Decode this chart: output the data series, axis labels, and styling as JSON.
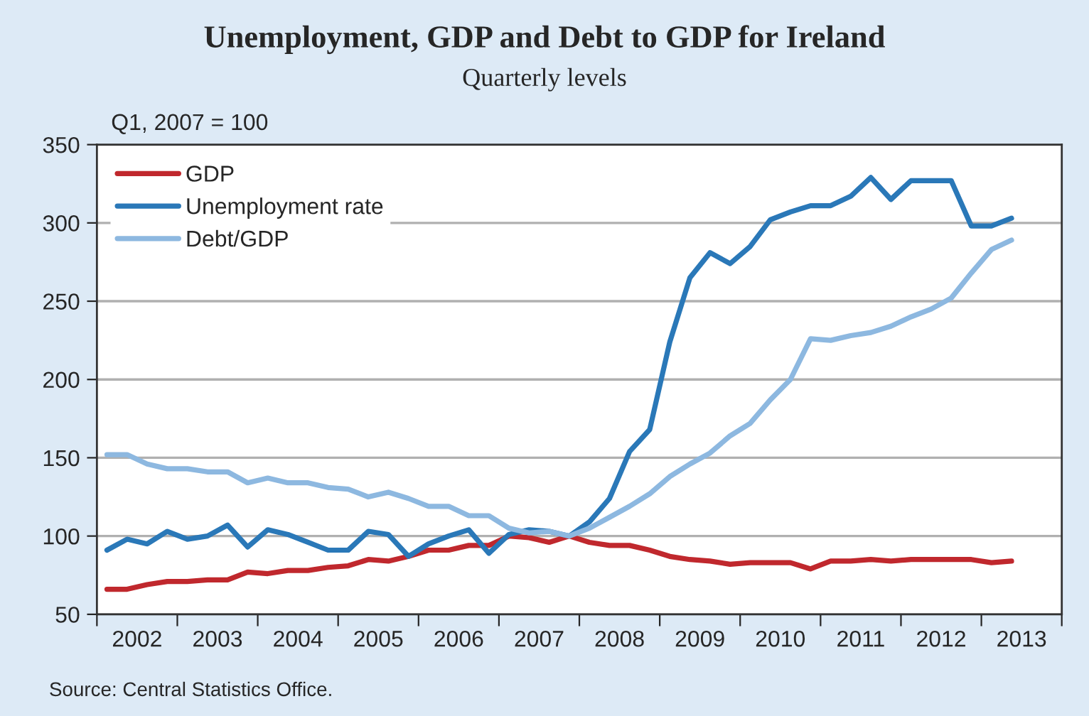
{
  "chart_data": {
    "type": "line",
    "title": "Unemployment, GDP and Debt to GDP for Ireland",
    "subtitle": "Quarterly levels",
    "ylabel": "Q1, 2007 = 100",
    "annotations": [
      "Source: Central Statistics Office."
    ],
    "x": [
      2001.25,
      2001.5,
      2001.75,
      2002.0,
      2002.25,
      2002.5,
      2002.75,
      2003.0,
      2003.25,
      2003.5,
      2003.75,
      2004.0,
      2004.25,
      2004.5,
      2004.75,
      2005.0,
      2005.25,
      2005.5,
      2005.75,
      2006.0,
      2006.25,
      2006.5,
      2006.75,
      2007.0,
      2007.25,
      2007.5,
      2007.75,
      2008.0,
      2008.25,
      2008.5,
      2008.75,
      2009.0,
      2009.25,
      2009.5,
      2009.75,
      2010.0,
      2010.25,
      2010.5,
      2010.75,
      2011.0,
      2011.25,
      2011.5,
      2011.75,
      2012.0,
      2012.25,
      2012.5
    ],
    "series": [
      {
        "name": "GDP",
        "color": "#c0282d",
        "values": [
          66,
          66,
          69,
          71,
          71,
          72,
          72,
          77,
          76,
          78,
          78,
          80,
          81,
          85,
          84,
          87,
          91,
          91,
          94,
          94,
          100,
          99,
          96,
          100,
          96,
          94,
          94,
          91,
          87,
          85,
          84,
          82,
          83,
          83,
          83,
          79,
          84,
          84,
          85,
          84,
          85,
          85,
          85,
          85,
          83,
          84
        ]
      },
      {
        "name": "Unemployment rate",
        "color": "#2a78b8",
        "values": [
          91,
          98,
          95,
          103,
          98,
          100,
          107,
          93,
          104,
          101,
          96,
          91,
          91,
          103,
          101,
          87,
          95,
          100,
          104,
          89,
          101,
          104,
          103,
          100,
          109,
          124,
          154,
          168,
          224,
          265,
          281,
          274,
          285,
          302,
          307,
          311,
          311,
          317,
          329,
          315,
          327,
          327,
          327,
          298,
          298,
          303
        ]
      },
      {
        "name": "Debt/GDP",
        "color": "#8db8e0",
        "values": [
          152,
          152,
          146,
          143,
          143,
          141,
          141,
          134,
          137,
          134,
          134,
          131,
          130,
          125,
          128,
          124,
          119,
          119,
          113,
          113,
          105,
          102,
          103,
          100,
          105,
          112,
          119,
          127,
          138,
          146,
          153,
          164,
          172,
          187,
          200,
          226,
          225,
          228,
          230,
          234,
          240,
          245,
          252,
          268,
          283,
          289
        ]
      }
    ],
    "xlim": [
      2001.125,
      2013.125
    ],
    "xticks": [
      {
        "value": 2001.125,
        "label": null
      },
      {
        "value": 2002.125,
        "label": null
      },
      {
        "value": 2003.125,
        "label": null
      },
      {
        "value": 2004.125,
        "label": null
      },
      {
        "value": 2005.125,
        "label": null
      },
      {
        "value": 2006.125,
        "label": null
      },
      {
        "value": 2007.125,
        "label": null
      },
      {
        "value": 2008.125,
        "label": null
      },
      {
        "value": 2009.125,
        "label": null
      },
      {
        "value": 2010.125,
        "label": null
      },
      {
        "value": 2011.125,
        "label": null
      },
      {
        "value": 2012.125,
        "label": null
      },
      {
        "value": 2013.125,
        "label": null
      },
      {
        "value": 2001.625,
        "label": "2002"
      },
      {
        "value": 2002.625,
        "label": "2003"
      },
      {
        "value": 2003.625,
        "label": "2004"
      },
      {
        "value": 2004.625,
        "label": "2005"
      },
      {
        "value": 2005.625,
        "label": "2006"
      },
      {
        "value": 2006.625,
        "label": "2007"
      },
      {
        "value": 2007.625,
        "label": "2008"
      },
      {
        "value": 2008.625,
        "label": "2009"
      },
      {
        "value": 2009.625,
        "label": "2010"
      },
      {
        "value": 2010.625,
        "label": "2011"
      },
      {
        "value": 2011.625,
        "label": "2012"
      },
      {
        "value": 2012.625,
        "label": "2013"
      }
    ],
    "ylim": [
      50,
      350
    ],
    "yticks": [
      50,
      100,
      150,
      200,
      250,
      300,
      350
    ],
    "grid": "y",
    "legend": "top left",
    "marker": "none",
    "line_style": "solid"
  }
}
